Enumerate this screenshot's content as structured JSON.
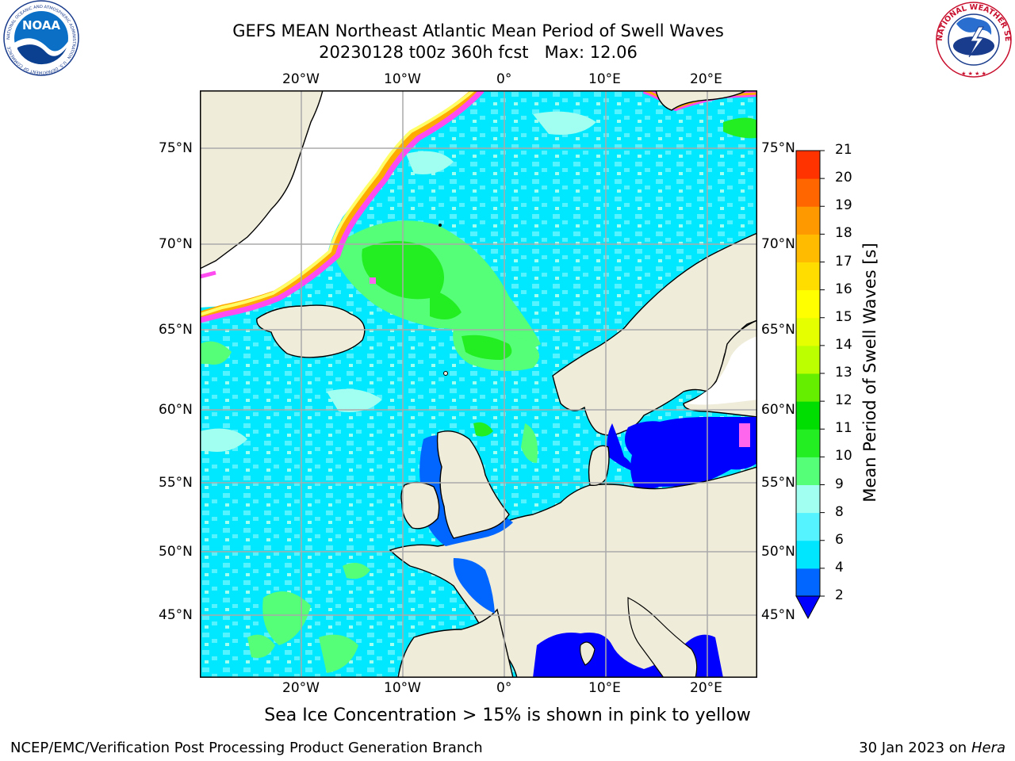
{
  "header": {
    "title_line1": "GEFS MEAN Northeast Atlantic Mean Period of Swell Waves",
    "title_line2": "20230128 t00z 360h fcst   Max: 12.06"
  },
  "logos": {
    "left": {
      "name": "noaa-logo",
      "text": "NOAA",
      "ring_text": "NATIONAL OCEANIC AND ATMOSPHERIC ADMINISTRATION · U.S. DEPARTMENT OF COMMERCE"
    },
    "right": {
      "name": "nws-logo",
      "ring_text": "NATIONAL WEATHER SERVICE"
    }
  },
  "map": {
    "lon_labels_top": [
      "20°W",
      "10°W",
      "0°",
      "10°E",
      "20°E"
    ],
    "lon_labels_bottom": [
      "20°W",
      "10°W",
      "0°",
      "10°E",
      "20°E"
    ],
    "lat_labels_left": [
      "75°N",
      "70°N",
      "65°N",
      "60°N",
      "55°N",
      "50°N",
      "45°N"
    ],
    "lat_labels_right": [
      "75°N",
      "70°N",
      "65°N",
      "60°N",
      "55°N",
      "50°N",
      "45°N"
    ],
    "colors": {
      "land": "#efecda",
      "ocean_base": "#00f0ff",
      "ice_edge_pink": "#ff4cf0",
      "ice_edge_orange": "#ffaa00",
      "ice_edge_yellow": "#ffff33"
    }
  },
  "colorbar": {
    "label": "Mean Period of Swell Waves [s]",
    "ticks": [
      "2",
      "4",
      "6",
      "8",
      "9",
      "10",
      "11",
      "12",
      "13",
      "14",
      "15",
      "16",
      "17",
      "18",
      "19",
      "20",
      "21"
    ],
    "colors": [
      "#0066ff",
      "#00e6ff",
      "#55f2ff",
      "#a0fff0",
      "#55ff77",
      "#22ee22",
      "#00dd00",
      "#66ee00",
      "#bbff00",
      "#e6ff00",
      "#ffff00",
      "#ffdd00",
      "#ffbb00",
      "#ff9900",
      "#ff6600",
      "#ff3300",
      "#ff0000"
    ],
    "extend_color": "#0000ff"
  },
  "notes": {
    "sea_ice": "Sea Ice Concentration > 15% is shown in pink to yellow"
  },
  "footer": {
    "left": "NCEP/EMC/Verification Post Processing Product Generation Branch",
    "right_date": "30 Jan 2023 on",
    "right_host": "Hera"
  }
}
